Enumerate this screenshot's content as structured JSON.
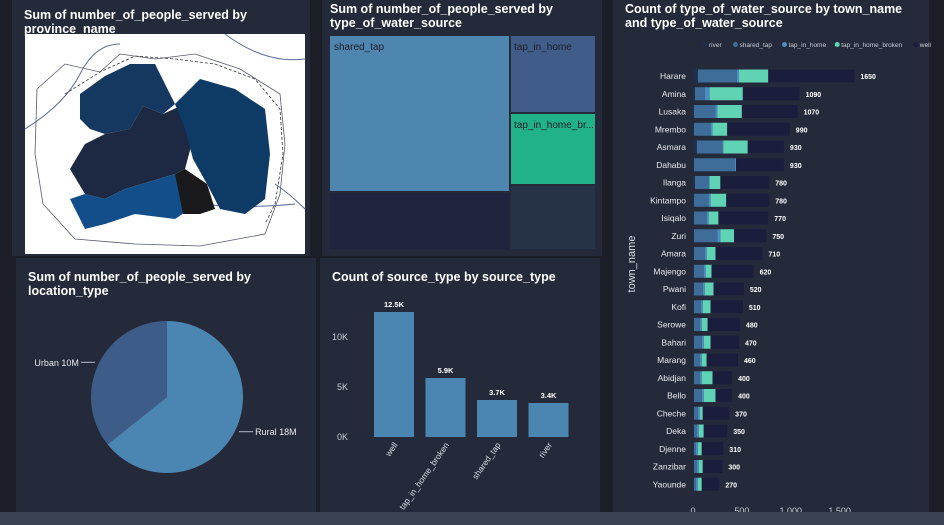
{
  "map_panel": {
    "title": "Sum of number_of_people_served by province_name"
  },
  "treemap_panel": {
    "title": "Sum of number_of_people_served by type_of_water_source",
    "tiles": [
      {
        "label": "shared_tap",
        "color": "#4f86b0"
      },
      {
        "label": "tap_in_home",
        "color": "#3f5d88"
      },
      {
        "label": "tap_in_home_br...",
        "color": "#22b28a"
      },
      {
        "label": "",
        "color": "#20243f"
      },
      {
        "label": "",
        "color": "#253248"
      }
    ]
  },
  "pie_panel": {
    "title": "Sum of number_of_people_served by location_type"
  },
  "bar_panel": {
    "title": "Count of source_type by source_type"
  },
  "hbar_panel": {
    "title": "Count of type_of_water_source by town_name and type_of_water_source"
  },
  "chart_data": [
    {
      "type": "pie",
      "title": "Sum of number_of_people_served by location_type",
      "categories": [
        "Rural",
        "Urban"
      ],
      "values": [
        18,
        10
      ],
      "data_labels": [
        "Rural 18M",
        "Urban 10M"
      ],
      "colors": [
        "#4b85b1",
        "#3d5d88"
      ]
    },
    {
      "type": "bar",
      "title": "Count of source_type by source_type",
      "categories": [
        "well",
        "tap_in_home_broken",
        "shared_tap",
        "river"
      ],
      "values": [
        12500,
        5900,
        3700,
        3400
      ],
      "data_labels": [
        "12.5K",
        "5.9K",
        "3.7K",
        "3.4K"
      ],
      "ylim": [
        0,
        13000
      ],
      "yticks": [
        0,
        5000,
        10000
      ],
      "ytick_labels": [
        "0K",
        "5K",
        "10K"
      ],
      "color": "#4b85b1"
    },
    {
      "type": "bar",
      "orientation": "horizontal",
      "stacked": true,
      "title": "Count of type_of_water_source by town_name and type_of_water_source",
      "ylabel": "town_name",
      "legend": [
        "river",
        "shared_tap",
        "tap_in_home",
        "tap_in_home_broken",
        "well"
      ],
      "legend_position": "top",
      "colors": [
        "#1d2f4c",
        "#3d6d98",
        "#4f8cbf",
        "#5fd3b3",
        "#1b1d3d"
      ],
      "categories": [
        "Harare",
        "Amina",
        "Lusaka",
        "Mrembo",
        "Asmara",
        "Dahabu",
        "Ilanga",
        "Kintampo",
        "Isiqalo",
        "Zuri",
        "Amara",
        "Majengo",
        "Pwani",
        "Kofi",
        "Serowe",
        "Bahari",
        "Marang",
        "Abidjan",
        "Bello",
        "Cheche",
        "Deka",
        "Djenne",
        "Zanzibar",
        "Yaounde"
      ],
      "totals": [
        1650,
        1090,
        1070,
        990,
        930,
        930,
        780,
        780,
        770,
        750,
        710,
        620,
        520,
        510,
        480,
        470,
        460,
        400,
        400,
        370,
        350,
        310,
        300,
        270
      ],
      "series": [
        {
          "name": "river",
          "values": [
            50,
            20,
            10,
            10,
            40,
            10,
            20,
            10,
            10,
            10,
            10,
            10,
            10,
            10,
            10,
            10,
            10,
            10,
            10,
            10,
            10,
            10,
            10,
            10
          ]
        },
        {
          "name": "shared_tap",
          "values": [
            400,
            100,
            220,
            170,
            260,
            420,
            140,
            150,
            130,
            240,
            110,
            100,
            90,
            70,
            60,
            80,
            60,
            60,
            80,
            40,
            30,
            20,
            30,
            20
          ]
        },
        {
          "name": "tap_in_home",
          "values": [
            20,
            50,
            20,
            20,
            10,
            10,
            10,
            20,
            20,
            30,
            20,
            20,
            20,
            20,
            20,
            20,
            20,
            20,
            20,
            20,
            20,
            20,
            20,
            20
          ]
        },
        {
          "name": "tap_in_home_broken",
          "values": [
            300,
            340,
            250,
            150,
            250,
            0,
            110,
            160,
            100,
            140,
            90,
            60,
            90,
            80,
            60,
            70,
            50,
            110,
            120,
            30,
            50,
            40,
            40,
            40
          ]
        },
        {
          "name": "well",
          "values": [
            880,
            580,
            570,
            640,
            370,
            490,
            500,
            440,
            510,
            330,
            480,
            430,
            310,
            330,
            330,
            290,
            320,
            200,
            170,
            270,
            240,
            220,
            200,
            180
          ]
        }
      ],
      "xlim": [
        0,
        1800
      ],
      "xticks": [
        0,
        500,
        1000,
        1500
      ],
      "xtick_labels": [
        "0",
        "500",
        "1,000",
        "1,500"
      ]
    }
  ]
}
